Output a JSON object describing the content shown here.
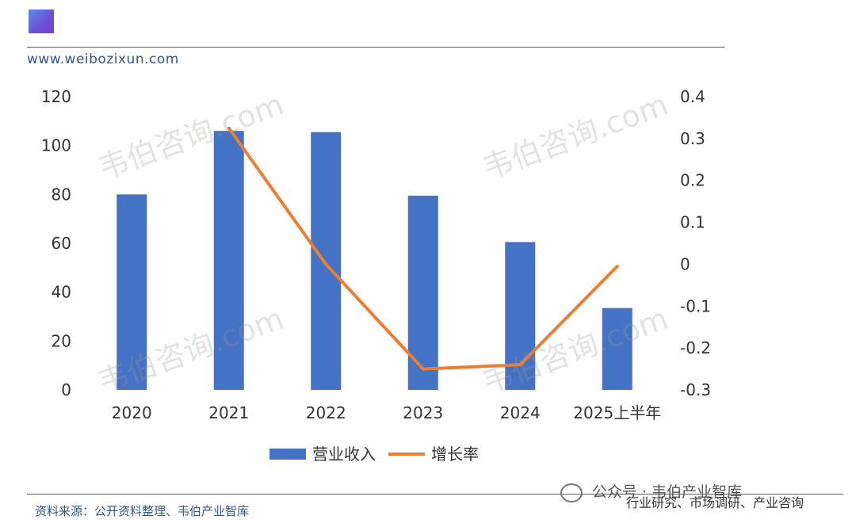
{
  "header": {
    "url": "www.weibozixun.com"
  },
  "footer": {
    "source": "资料来源：公开资料整理、韦伯产业智库",
    "tagline": "行业研究、市场调研、产业咨询",
    "wechat": "公众号 · 韦伯产业智库"
  },
  "watermark": {
    "text": "韦伯咨询.com"
  },
  "colors": {
    "bar": "#4472c4",
    "line": "#ed7d31",
    "accent": "#2f6f86"
  },
  "chart_data": {
    "type": "bar",
    "categories": [
      "2020",
      "2021",
      "2022",
      "2023",
      "2024",
      "2025上半年"
    ],
    "series": [
      {
        "name": "营业收入",
        "type": "bar",
        "axis": "left",
        "values": [
          80,
          106,
          105.5,
          79.5,
          60.5,
          33.5
        ]
      },
      {
        "name": "增长率",
        "type": "line",
        "axis": "right",
        "values": [
          null,
          0.325,
          0,
          -0.25,
          -0.24,
          -0.005
        ]
      }
    ],
    "y_left": {
      "ylim": [
        0,
        120
      ],
      "ticks": [
        0,
        20,
        40,
        60,
        80,
        100,
        120
      ]
    },
    "y_right": {
      "ylim": [
        -0.3,
        0.4
      ],
      "ticks": [
        "-0.3",
        "-0.2",
        "-0.1",
        "0",
        "0.1",
        "0.2",
        "0.3",
        "0.4"
      ]
    },
    "grid": false,
    "legend": "bottom"
  }
}
